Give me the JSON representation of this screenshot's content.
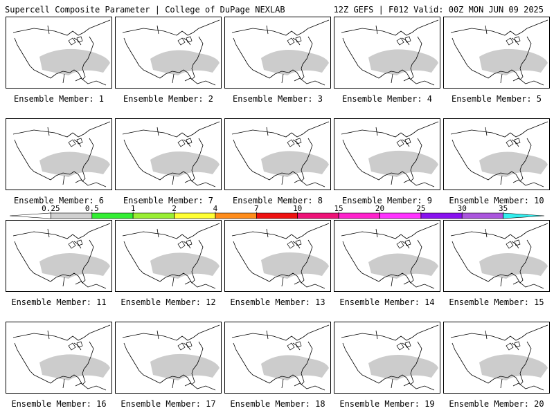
{
  "header": {
    "title": "Supercell Composite Parameter | College of DuPage NEXLAB",
    "run_info": "12Z GEFS | F012 Valid: 00Z MON JUN 09 2025"
  },
  "panels": [
    {
      "label": "Ensemble Member: 1"
    },
    {
      "label": "Ensemble Member: 2"
    },
    {
      "label": "Ensemble Member: 3"
    },
    {
      "label": "Ensemble Member: 4"
    },
    {
      "label": "Ensemble Member: 5"
    },
    {
      "label": "Ensemble Member: 6"
    },
    {
      "label": "Ensemble Member: 7"
    },
    {
      "label": "Ensemble Member: 8"
    },
    {
      "label": "Ensemble Member: 9"
    },
    {
      "label": "Ensemble Member: 10"
    },
    {
      "label": "Ensemble Member: 11"
    },
    {
      "label": "Ensemble Member: 12"
    },
    {
      "label": "Ensemble Member: 13"
    },
    {
      "label": "Ensemble Member: 14"
    },
    {
      "label": "Ensemble Member: 15"
    },
    {
      "label": "Ensemble Member: 16"
    },
    {
      "label": "Ensemble Member: 17"
    },
    {
      "label": "Ensemble Member: 18"
    },
    {
      "label": "Ensemble Member: 19"
    },
    {
      "label": "Ensemble Member: 20"
    }
  ],
  "colorbar": {
    "ticks": [
      "0.25",
      "0.5",
      "1",
      "2",
      "4",
      "7",
      "10",
      "15",
      "20",
      "25",
      "30",
      "35"
    ],
    "colors": [
      "#ffffff",
      "#d0d0d0",
      "#33ee33",
      "#99ee33",
      "#ffff33",
      "#ff8c1a",
      "#ee1111",
      "#ee1177",
      "#ff22cc",
      "#ff33ff",
      "#8811ee",
      "#aa55dd",
      "#33eeee"
    ]
  },
  "map_colors": {
    "gray": "#cccccc",
    "green": "#33ee33",
    "lightgreen": "#99ee33",
    "yellow": "#ffff33",
    "orange": "#ff8c1a",
    "red": "#ee1111"
  }
}
